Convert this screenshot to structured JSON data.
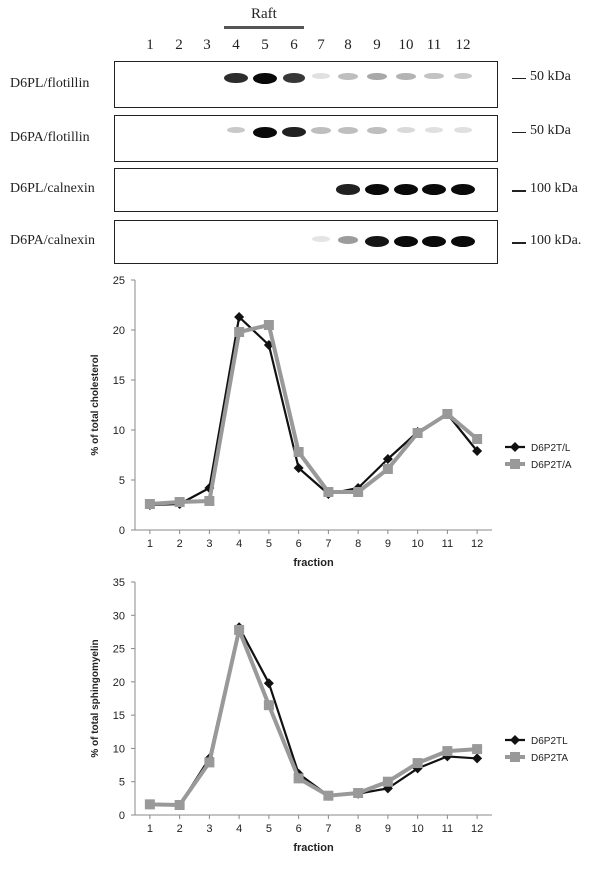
{
  "blot": {
    "raft_label": "Raft",
    "lanes": [
      "1",
      "2",
      "3",
      "4",
      "5",
      "6",
      "7",
      "8",
      "9",
      "10",
      "11",
      "12"
    ],
    "rows": [
      {
        "label": "D6PL/flotillin",
        "marker": "50 kDa",
        "bands": [
          0,
          0,
          0,
          0.85,
          1.0,
          0.8,
          0.05,
          0.2,
          0.3,
          0.25,
          0.18,
          0.15
        ]
      },
      {
        "label": "D6PA/flotillin",
        "marker": "50 kDa",
        "bands": [
          0,
          0,
          0,
          0.15,
          1.0,
          0.9,
          0.2,
          0.2,
          0.2,
          0.08,
          0.05,
          0.05
        ]
      },
      {
        "label": "D6PL/calnexin",
        "marker": "100 kDa",
        "bands": [
          0,
          0,
          0,
          0,
          0,
          0,
          0,
          0.9,
          1.0,
          1.0,
          1.0,
          1.0
        ]
      },
      {
        "label": "D6PA/calnexin",
        "marker": "100 kDa.",
        "bands": [
          0,
          0,
          0,
          0,
          0,
          0,
          0.03,
          0.35,
          0.95,
          1.0,
          1.0,
          1.0
        ]
      }
    ]
  },
  "chart_data": [
    {
      "type": "line",
      "xlabel": "fraction",
      "ylabel": "% of total cholesterol",
      "x": [
        1,
        2,
        3,
        4,
        5,
        6,
        7,
        8,
        9,
        10,
        11,
        12
      ],
      "ylim": [
        0,
        25
      ],
      "yticks": [
        0,
        5,
        10,
        15,
        20,
        25
      ],
      "series": [
        {
          "name": "D6P2T/L",
          "color": "#111111",
          "marker": "diamond",
          "values": [
            2.5,
            2.6,
            4.2,
            21.3,
            18.5,
            6.2,
            3.6,
            4.2,
            7.1,
            9.8,
            11.6,
            7.9
          ]
        },
        {
          "name": "D6P2T/A",
          "color": "#999999",
          "marker": "square",
          "values": [
            2.6,
            2.8,
            2.9,
            19.8,
            20.5,
            7.8,
            3.8,
            3.8,
            6.1,
            9.7,
            11.6,
            9.1
          ]
        }
      ]
    },
    {
      "type": "line",
      "xlabel": "fraction",
      "ylabel": "% of total sphingomyelin",
      "x": [
        1,
        2,
        3,
        4,
        5,
        6,
        7,
        8,
        9,
        10,
        11,
        12
      ],
      "ylim": [
        0,
        35
      ],
      "yticks": [
        0,
        5,
        10,
        15,
        20,
        25,
        30,
        35
      ],
      "series": [
        {
          "name": "D6P2TL",
          "color": "#111111",
          "marker": "diamond",
          "values": [
            1.6,
            1.5,
            8.5,
            28.2,
            19.8,
            6.2,
            2.9,
            3.2,
            4.0,
            7.0,
            8.8,
            8.5
          ]
        },
        {
          "name": "D6P2TA",
          "color": "#999999",
          "marker": "square",
          "values": [
            1.6,
            1.5,
            7.9,
            27.8,
            16.5,
            5.5,
            2.9,
            3.3,
            5.0,
            7.8,
            9.6,
            9.9
          ]
        }
      ]
    }
  ]
}
